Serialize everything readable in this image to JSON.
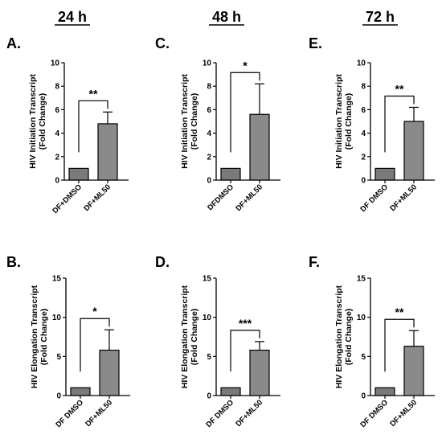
{
  "figure": {
    "column_titles": [
      "24 h",
      "48 h",
      "72 h"
    ],
    "colors": {
      "bar_control": "#7a7a7a",
      "bar_treated": "#8a8a8a",
      "stroke": "#000000"
    }
  },
  "chart_data": [
    {
      "type": "bar",
      "panel": "A.",
      "column": "24 h",
      "categories": [
        "DF+DMSO",
        "DF+ML50"
      ],
      "values": [
        1,
        4.8
      ],
      "errors": [
        0,
        1.0
      ],
      "ylabel": [
        "HIV Initiation Transcript",
        "(Fold Change)"
      ],
      "ylim": [
        0,
        10
      ],
      "yticks": [
        0,
        2,
        4,
        6,
        8,
        10
      ],
      "significance": "**"
    },
    {
      "type": "bar",
      "panel": "C.",
      "column": "48 h",
      "categories": [
        "DFDMSO",
        "DF+ML50"
      ],
      "values": [
        1,
        5.6
      ],
      "errors": [
        0,
        2.6
      ],
      "ylabel": [
        "HIV Initiation Transcript",
        "(Fold Change)"
      ],
      "ylim": [
        0,
        10
      ],
      "yticks": [
        0,
        2,
        4,
        6,
        8,
        10
      ],
      "significance": "*"
    },
    {
      "type": "bar",
      "panel": "E.",
      "column": "72 h",
      "categories": [
        "DF DMSO",
        "DF+ML50"
      ],
      "values": [
        1,
        5.0
      ],
      "errors": [
        0,
        1.2
      ],
      "ylabel": [
        "HIV Initiation Transcript",
        "(Fold Change)"
      ],
      "ylim": [
        0,
        10
      ],
      "yticks": [
        0,
        2,
        4,
        6,
        8,
        10
      ],
      "significance": "**"
    },
    {
      "type": "bar",
      "panel": "B.",
      "column": "24 h",
      "categories": [
        "DF DMSO",
        "DF+ML50"
      ],
      "values": [
        1,
        5.8
      ],
      "errors": [
        0,
        2.6
      ],
      "ylabel": [
        "HIV Elongation Transcript",
        "(Fold Change)"
      ],
      "ylim": [
        0,
        15
      ],
      "yticks": [
        0,
        5,
        10,
        15
      ],
      "significance": "*"
    },
    {
      "type": "bar",
      "panel": "D.",
      "column": "48 h",
      "categories": [
        "DF DMSO",
        "DF+ML50"
      ],
      "values": [
        1,
        5.8
      ],
      "errors": [
        0,
        1.1
      ],
      "ylabel": [
        "HIV Elongation Transcript",
        "(Fold Change)"
      ],
      "ylim": [
        0,
        15
      ],
      "yticks": [
        0,
        5,
        10,
        15
      ],
      "significance": "***"
    },
    {
      "type": "bar",
      "panel": "F.",
      "column": "72 h",
      "categories": [
        "DF DMSO",
        "DF+ML50"
      ],
      "values": [
        1,
        6.3
      ],
      "errors": [
        0,
        2.0
      ],
      "ylabel": [
        "HIV Elongation Transcript",
        "(Fold Change)"
      ],
      "ylim": [
        0,
        15
      ],
      "yticks": [
        0,
        5,
        10,
        15
      ],
      "significance": "**"
    }
  ]
}
